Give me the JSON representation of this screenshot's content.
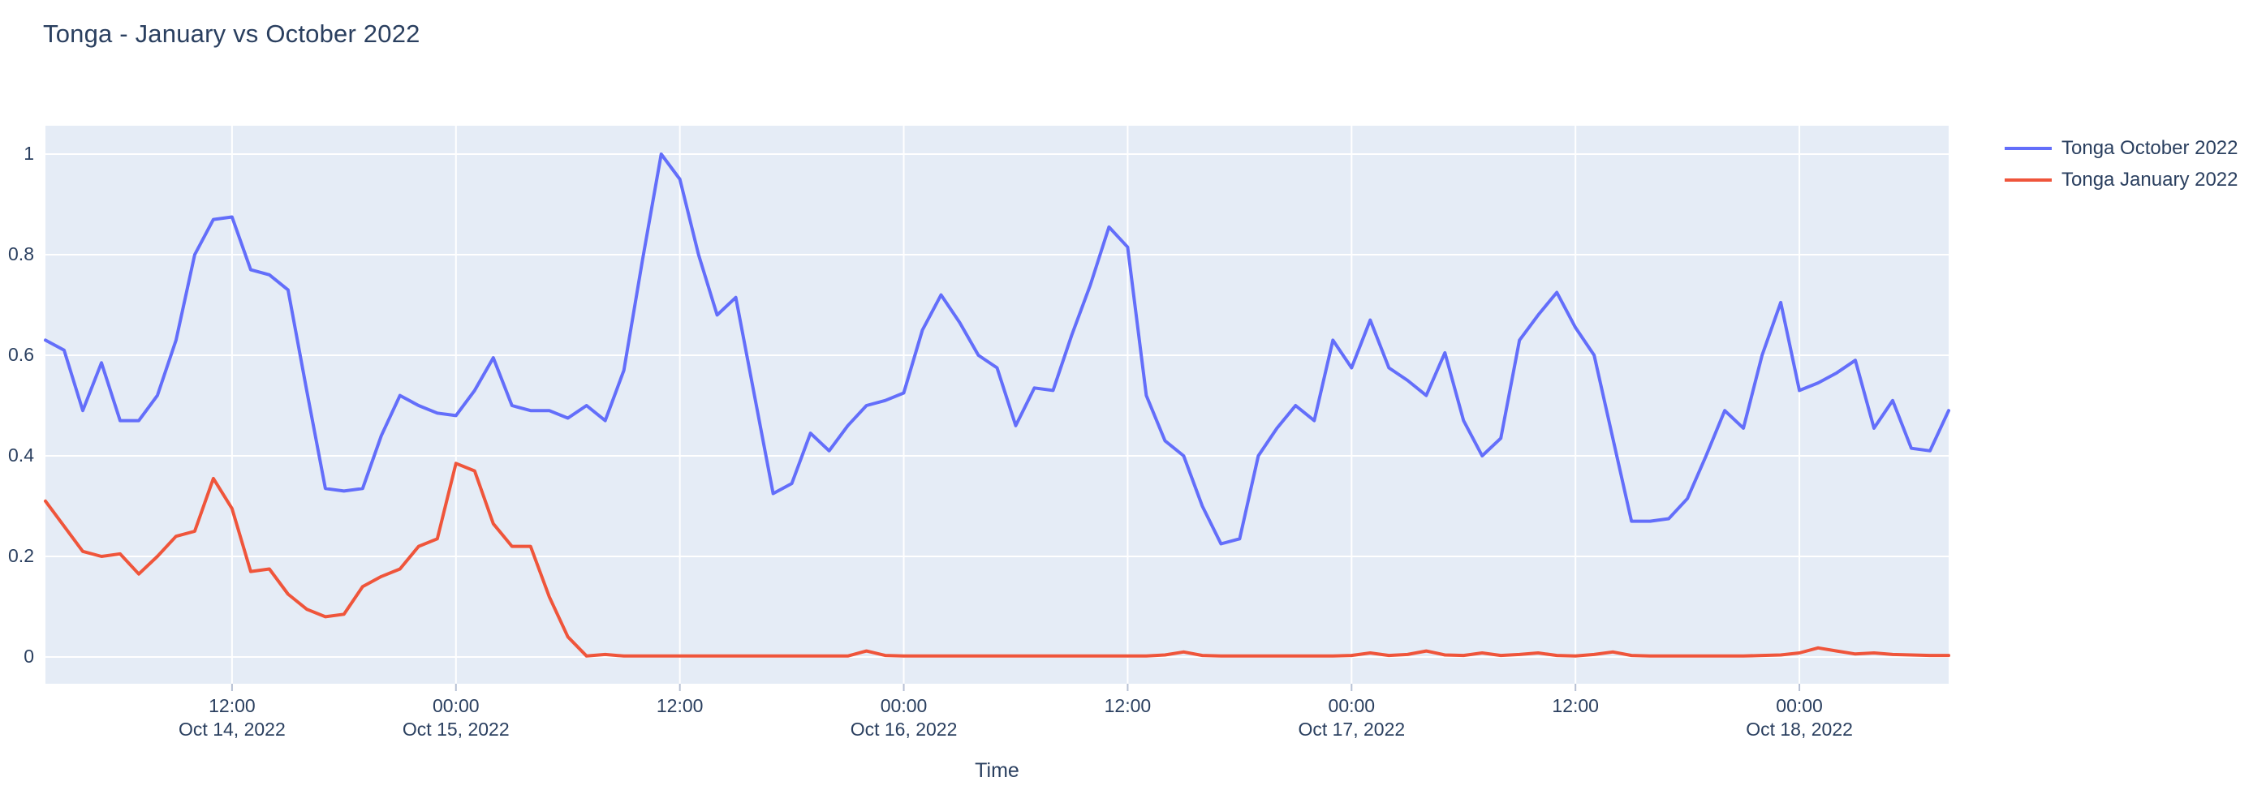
{
  "title": "Tonga - January vs October 2022",
  "colors": {
    "paper_background": "#ffffff",
    "plot_background": "#e5ecf6",
    "gridline": "#ffffff",
    "tick_mark": "#b6c0d4",
    "text": "#2a3f5f",
    "series_october": "#636efa",
    "series_january": "#ef553b"
  },
  "chart_data": {
    "type": "line",
    "title": "Tonga - January vs October 2022",
    "xlabel": "Time",
    "ylabel": "",
    "x_start": "2022-10-14 02:00",
    "x_step": "1 hour",
    "x_end": "2022-10-18 08:00",
    "point_count": 103,
    "ylim": [
      -0.055,
      1.055
    ],
    "grid": true,
    "legend_position": "right",
    "yticks": [
      {
        "label": "0",
        "value": 0
      },
      {
        "label": "0.2",
        "value": 0.2
      },
      {
        "label": "0.4",
        "value": 0.4
      },
      {
        "label": "0.6",
        "value": 0.6
      },
      {
        "label": "0.8",
        "value": 0.8
      },
      {
        "label": "1",
        "value": 1
      }
    ],
    "xticks": [
      {
        "hour_offset": 10,
        "time": "12:00",
        "date": "Oct 14, 2022"
      },
      {
        "hour_offset": 22,
        "time": "00:00",
        "date": "Oct 15, 2022"
      },
      {
        "hour_offset": 34,
        "time": "12:00",
        "date": ""
      },
      {
        "hour_offset": 46,
        "time": "00:00",
        "date": "Oct 16, 2022"
      },
      {
        "hour_offset": 58,
        "time": "12:00",
        "date": ""
      },
      {
        "hour_offset": 70,
        "time": "00:00",
        "date": "Oct 17, 2022"
      },
      {
        "hour_offset": 82,
        "time": "12:00",
        "date": ""
      },
      {
        "hour_offset": 94,
        "time": "00:00",
        "date": "Oct 18, 2022"
      }
    ],
    "series": [
      {
        "name": "Tonga October 2022",
        "color": "#636efa",
        "values": [
          0.63,
          0.61,
          0.49,
          0.585,
          0.47,
          0.47,
          0.52,
          0.63,
          0.8,
          0.87,
          0.875,
          0.77,
          0.76,
          0.73,
          0.53,
          0.335,
          0.33,
          0.335,
          0.44,
          0.52,
          0.5,
          0.485,
          0.48,
          0.53,
          0.595,
          0.5,
          0.49,
          0.49,
          0.475,
          0.5,
          0.47,
          0.57,
          0.79,
          1.0,
          0.95,
          0.8,
          0.68,
          0.715,
          0.52,
          0.325,
          0.345,
          0.445,
          0.41,
          0.46,
          0.5,
          0.51,
          0.525,
          0.65,
          0.72,
          0.665,
          0.6,
          0.575,
          0.46,
          0.535,
          0.53,
          0.64,
          0.74,
          0.855,
          0.815,
          0.52,
          0.43,
          0.4,
          0.3,
          0.225,
          0.235,
          0.4,
          0.455,
          0.5,
          0.47,
          0.63,
          0.575,
          0.67,
          0.575,
          0.55,
          0.52,
          0.605,
          0.47,
          0.4,
          0.435,
          0.63,
          0.68,
          0.725,
          0.655,
          0.6,
          0.435,
          0.27,
          0.27,
          0.275,
          0.315,
          0.4,
          0.49,
          0.455,
          0.6,
          0.705,
          0.53,
          0.545,
          0.565,
          0.59,
          0.455,
          0.51,
          0.415,
          0.41,
          0.49
        ]
      },
      {
        "name": "Tonga January 2022",
        "color": "#ef553b",
        "values": [
          0.31,
          0.26,
          0.21,
          0.2,
          0.205,
          0.165,
          0.2,
          0.24,
          0.25,
          0.355,
          0.295,
          0.17,
          0.175,
          0.125,
          0.095,
          0.08,
          0.085,
          0.14,
          0.16,
          0.175,
          0.22,
          0.235,
          0.385,
          0.37,
          0.265,
          0.22,
          0.22,
          0.12,
          0.04,
          0.002,
          0.005,
          0.002,
          0.002,
          0.002,
          0.002,
          0.002,
          0.002,
          0.002,
          0.002,
          0.002,
          0.002,
          0.002,
          0.002,
          0.002,
          0.012,
          0.003,
          0.002,
          0.002,
          0.002,
          0.002,
          0.002,
          0.002,
          0.002,
          0.002,
          0.002,
          0.002,
          0.002,
          0.002,
          0.002,
          0.002,
          0.004,
          0.01,
          0.003,
          0.002,
          0.002,
          0.002,
          0.002,
          0.002,
          0.002,
          0.002,
          0.003,
          0.008,
          0.003,
          0.005,
          0.012,
          0.004,
          0.003,
          0.008,
          0.003,
          0.005,
          0.008,
          0.003,
          0.002,
          0.005,
          0.01,
          0.003,
          0.002,
          0.002,
          0.002,
          0.002,
          0.002,
          0.002,
          0.003,
          0.004,
          0.008,
          0.018,
          0.012,
          0.006,
          0.008,
          0.005,
          0.004,
          0.003,
          0.003
        ]
      }
    ]
  }
}
